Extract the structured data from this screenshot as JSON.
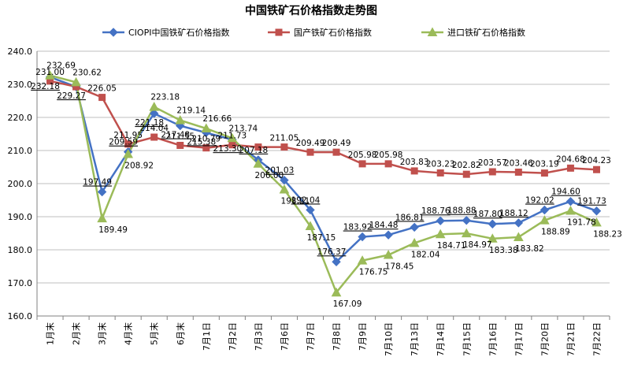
{
  "chart_data": {
    "type": "line",
    "title": "中国铁矿石价格指数走势图",
    "xlabel": "",
    "ylabel": "",
    "ylim": [
      160,
      240
    ],
    "yticks": [
      "160.0",
      "170.0",
      "180.0",
      "190.0",
      "200.0",
      "210.0",
      "220.0",
      "230.0",
      "240.0"
    ],
    "grid": true,
    "legend_position": "top",
    "categories": [
      "1月末",
      "2月末",
      "3月末",
      "4月末",
      "5月末",
      "6月末",
      "7月1日",
      "7月2日",
      "7月3日",
      "7月6日",
      "7月7日",
      "7月8日",
      "7月9日",
      "7月10日",
      "7月13日",
      "7月14日",
      "7月15日",
      "7月16日",
      "7月17日",
      "7月20日",
      "7月21日",
      "7月22日"
    ],
    "series": [
      {
        "name": "CIOPI中国铁矿石价格指数",
        "color": "#4472C4",
        "marker": "diamond",
        "values": [
          232.18,
          229.27,
          197.49,
          209.59,
          221.18,
          217.48,
          215.38,
          213.3,
          207.18,
          201.03,
          192.04,
          176.37,
          183.92,
          184.48,
          186.81,
          188.76,
          188.88,
          187.8,
          188.12,
          192.02,
          194.6,
          191.73
        ],
        "labels": [
          "232.18",
          "229.27",
          "197.49",
          "209.59",
          "221.18",
          "217.48",
          "215.38",
          "213.30",
          "207.18",
          "201.03",
          "192.04",
          "176.37",
          "183.92",
          "184.48",
          "186.81",
          "188.76",
          "188.88",
          "187.80",
          "188.12",
          "192.02",
          "194.60",
          "191.73"
        ]
      },
      {
        "name": "国产铁矿石价格指数",
        "color": "#C0504D",
        "marker": "square",
        "values": [
          231.0,
          229.27,
          226.05,
          211.95,
          214.04,
          211.55,
          210.79,
          211.73,
          211.05,
          211.05,
          209.49,
          209.49,
          205.98,
          205.98,
          203.83,
          203.23,
          202.82,
          203.57,
          203.46,
          203.19,
          204.68,
          204.23
        ],
        "labels": [
          "231.00",
          "",
          "226.05",
          "211.95",
          "214.04",
          "211.55",
          "210.79",
          "211.73",
          "",
          "211.05",
          "209.49",
          "209.49",
          "205.98",
          "205.98",
          "203.83",
          "203.23",
          "202.82",
          "203.57",
          "203.46",
          "203.19",
          "204.68",
          "204.23"
        ]
      },
      {
        "name": "进口铁矿石价格指数",
        "color": "#9BBB59",
        "marker": "triangle",
        "values": [
          232.69,
          230.62,
          189.49,
          208.92,
          223.18,
          219.14,
          216.66,
          213.74,
          206.0,
          198.21,
          187.15,
          167.09,
          176.75,
          178.45,
          182.04,
          184.71,
          184.97,
          183.38,
          183.82,
          188.89,
          191.78,
          188.23
        ],
        "labels": [
          "232.69",
          "230.62",
          "189.49",
          "208.92",
          "223.18",
          "219.14",
          "216.66",
          "213.74",
          "206.00",
          "198.21",
          "187.15",
          "167.09",
          "176.75",
          "178.45",
          "182.04",
          "184.71",
          "184.97",
          "183.38",
          "183.82",
          "188.89",
          "191.78",
          "188.23"
        ]
      }
    ]
  }
}
